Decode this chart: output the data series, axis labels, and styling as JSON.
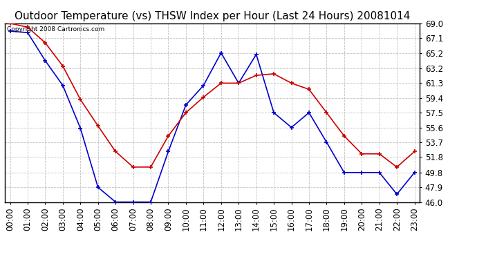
{
  "title": "Outdoor Temperature (vs) THSW Index per Hour (Last 24 Hours) 20081014",
  "copyright": "Copyright 2008 Cartronics.com",
  "hours": [
    "00:00",
    "01:00",
    "02:00",
    "03:00",
    "04:00",
    "05:00",
    "06:00",
    "07:00",
    "08:00",
    "09:00",
    "10:00",
    "11:00",
    "12:00",
    "13:00",
    "14:00",
    "15:00",
    "16:00",
    "17:00",
    "18:00",
    "19:00",
    "20:00",
    "21:00",
    "22:00",
    "23:00"
  ],
  "temp": [
    69.0,
    68.5,
    66.5,
    63.5,
    59.2,
    55.8,
    52.5,
    50.5,
    50.5,
    54.5,
    57.5,
    59.5,
    61.3,
    61.3,
    62.3,
    62.5,
    61.3,
    60.5,
    57.5,
    54.5,
    52.2,
    52.2,
    50.5,
    52.5
  ],
  "thsw": [
    68.0,
    67.8,
    64.2,
    61.0,
    55.5,
    47.9,
    46.0,
    46.0,
    46.0,
    52.5,
    58.5,
    61.0,
    65.2,
    61.3,
    65.0,
    57.5,
    55.6,
    57.5,
    53.7,
    49.8,
    49.8,
    49.8,
    47.0,
    49.8
  ],
  "ylim": [
    46.0,
    69.0
  ],
  "yticks": [
    46.0,
    47.9,
    49.8,
    51.8,
    53.7,
    55.6,
    57.5,
    59.4,
    61.3,
    63.2,
    65.2,
    67.1,
    69.0
  ],
  "temp_color": "#cc0000",
  "thsw_color": "#0000cc",
  "bg_color": "#ffffff",
  "grid_color": "#bbbbbb",
  "title_fontsize": 11,
  "tick_fontsize": 8.5
}
